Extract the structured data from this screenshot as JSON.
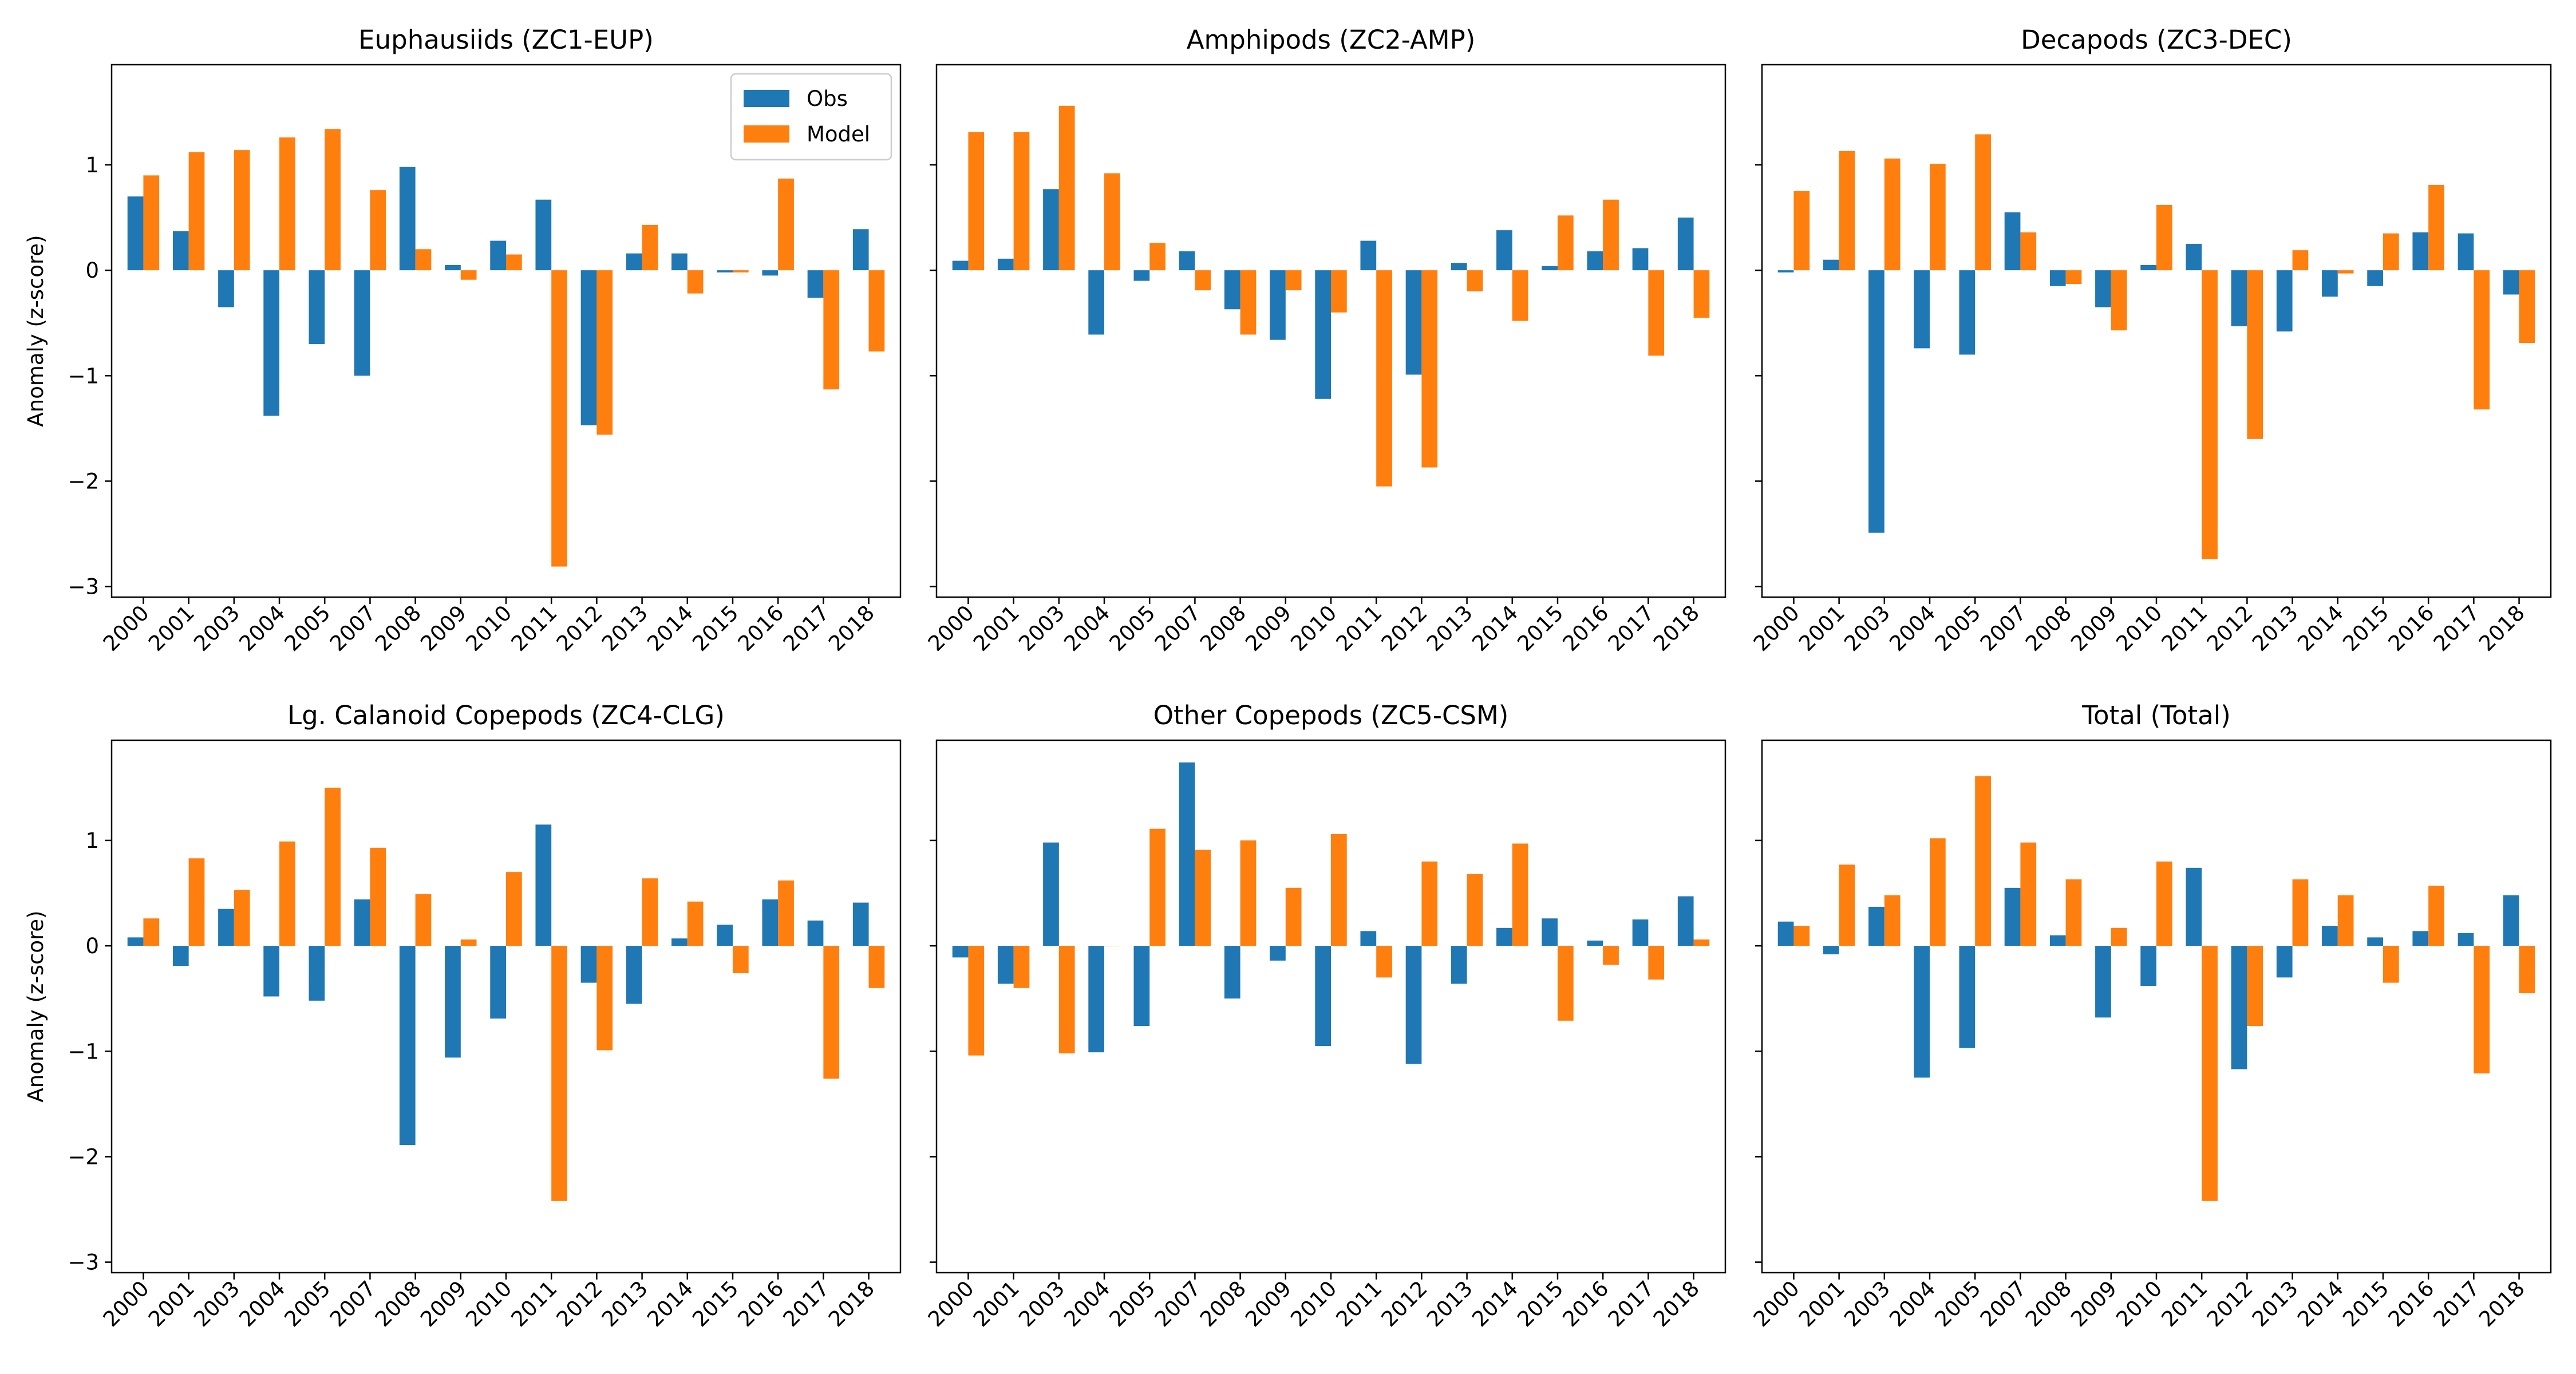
{
  "colors": {
    "obs": "#1f77b4",
    "model": "#ff7f0e"
  },
  "legend": {
    "position": "top-right",
    "entries": [
      "Obs",
      "Model"
    ]
  },
  "chart_data": [
    {
      "type": "bar",
      "title": "Euphausiids (ZC1-EUP)",
      "ylabel": "Anomaly (z-score)",
      "categories": [
        "2000",
        "2001",
        "2003",
        "2004",
        "2005",
        "2007",
        "2008",
        "2009",
        "2010",
        "2011",
        "2012",
        "2013",
        "2014",
        "2015",
        "2016",
        "2017",
        "2018"
      ],
      "ylim": [
        -3.1,
        1.95
      ],
      "yticks": [
        1,
        0,
        -1,
        -2,
        -3
      ],
      "grid": false,
      "series": [
        {
          "name": "Obs",
          "values": [
            0.7,
            0.37,
            -0.35,
            -1.38,
            -0.7,
            -1.0,
            0.98,
            0.05,
            0.28,
            0.67,
            -1.47,
            0.16,
            0.16,
            -0.02,
            -0.05,
            -0.26,
            0.39
          ]
        },
        {
          "name": "Model",
          "values": [
            0.9,
            1.12,
            1.14,
            1.26,
            1.34,
            0.76,
            0.2,
            -0.09,
            0.15,
            -2.81,
            -1.56,
            0.43,
            -0.22,
            -0.02,
            0.87,
            -1.13,
            -0.77
          ]
        }
      ]
    },
    {
      "type": "bar",
      "title": "Amphipods (ZC2-AMP)",
      "ylabel": "",
      "categories": [
        "2000",
        "2001",
        "2003",
        "2004",
        "2005",
        "2007",
        "2008",
        "2009",
        "2010",
        "2011",
        "2012",
        "2013",
        "2014",
        "2015",
        "2016",
        "2017",
        "2018"
      ],
      "ylim": [
        -3.1,
        1.95
      ],
      "yticks": [
        1,
        0,
        -1,
        -2,
        -3
      ],
      "grid": false,
      "series": [
        {
          "name": "Obs",
          "values": [
            0.09,
            0.11,
            0.77,
            -0.61,
            -0.1,
            0.18,
            -0.37,
            -0.66,
            -1.22,
            0.28,
            -0.99,
            0.07,
            0.38,
            0.04,
            0.18,
            0.21,
            0.5
          ]
        },
        {
          "name": "Model",
          "values": [
            1.31,
            1.31,
            1.56,
            0.92,
            0.26,
            -0.19,
            -0.61,
            -0.19,
            -0.4,
            -2.05,
            -1.87,
            -0.2,
            -0.48,
            0.52,
            0.67,
            -0.81,
            -0.45
          ]
        }
      ]
    },
    {
      "type": "bar",
      "title": "Decapods (ZC3-DEC)",
      "ylabel": "",
      "categories": [
        "2000",
        "2001",
        "2003",
        "2004",
        "2005",
        "2007",
        "2008",
        "2009",
        "2010",
        "2011",
        "2012",
        "2013",
        "2014",
        "2015",
        "2016",
        "2017",
        "2018"
      ],
      "ylim": [
        -3.1,
        1.95
      ],
      "yticks": [
        1,
        0,
        -1,
        -2,
        -3
      ],
      "grid": false,
      "series": [
        {
          "name": "Obs",
          "values": [
            -0.02,
            0.1,
            -2.49,
            -0.74,
            -0.8,
            0.55,
            -0.15,
            -0.35,
            0.05,
            0.25,
            -0.53,
            -0.58,
            -0.25,
            -0.15,
            0.36,
            0.35,
            -0.23
          ]
        },
        {
          "name": "Model",
          "values": [
            0.75,
            1.13,
            1.06,
            1.01,
            1.29,
            0.36,
            -0.13,
            -0.57,
            0.62,
            -2.74,
            -1.6,
            0.19,
            -0.03,
            0.35,
            0.81,
            -1.32,
            -0.69
          ]
        }
      ]
    },
    {
      "type": "bar",
      "title": "Lg. Calanoid Copepods (ZC4-CLG)",
      "ylabel": "Anomaly (z-score)",
      "categories": [
        "2000",
        "2001",
        "2003",
        "2004",
        "2005",
        "2007",
        "2008",
        "2009",
        "2010",
        "2011",
        "2012",
        "2013",
        "2014",
        "2015",
        "2016",
        "2017",
        "2018"
      ],
      "ylim": [
        -3.1,
        1.95
      ],
      "yticks": [
        1,
        0,
        -1,
        -2,
        -3
      ],
      "grid": false,
      "series": [
        {
          "name": "Obs",
          "values": [
            0.08,
            -0.19,
            0.35,
            -0.48,
            -0.52,
            0.44,
            -1.89,
            -1.06,
            -0.69,
            1.15,
            -0.35,
            -0.55,
            0.07,
            0.2,
            0.44,
            0.24,
            0.41
          ]
        },
        {
          "name": "Model",
          "values": [
            0.26,
            0.83,
            0.53,
            0.99,
            1.5,
            0.93,
            0.49,
            0.06,
            0.7,
            -2.42,
            -0.99,
            0.64,
            0.42,
            -0.26,
            0.62,
            -1.26,
            -0.4
          ]
        }
      ]
    },
    {
      "type": "bar",
      "title": "Other Copepods (ZC5-CSM)",
      "ylabel": "",
      "categories": [
        "2000",
        "2001",
        "2003",
        "2004",
        "2005",
        "2007",
        "2008",
        "2009",
        "2010",
        "2011",
        "2012",
        "2013",
        "2014",
        "2015",
        "2016",
        "2017",
        "2018"
      ],
      "ylim": [
        -3.1,
        1.95
      ],
      "yticks": [
        1,
        0,
        -1,
        -2,
        -3
      ],
      "grid": false,
      "series": [
        {
          "name": "Obs",
          "values": [
            -0.11,
            -0.36,
            0.98,
            -1.01,
            -0.76,
            1.74,
            -0.5,
            -0.14,
            -0.95,
            0.14,
            -1.12,
            -0.36,
            0.17,
            0.26,
            0.05,
            0.25,
            0.47
          ]
        },
        {
          "name": "Model",
          "values": [
            -1.04,
            -0.4,
            -1.02,
            0.0,
            1.11,
            0.91,
            1.0,
            0.55,
            1.06,
            -0.3,
            0.8,
            0.68,
            0.97,
            -0.71,
            -0.18,
            -0.32,
            0.06
          ]
        }
      ]
    },
    {
      "type": "bar",
      "title": "Total (Total)",
      "ylabel": "",
      "categories": [
        "2000",
        "2001",
        "2003",
        "2004",
        "2005",
        "2007",
        "2008",
        "2009",
        "2010",
        "2011",
        "2012",
        "2013",
        "2014",
        "2015",
        "2016",
        "2017",
        "2018"
      ],
      "ylim": [
        -3.1,
        1.95
      ],
      "yticks": [
        1,
        0,
        -1,
        -2,
        -3
      ],
      "grid": false,
      "series": [
        {
          "name": "Obs",
          "values": [
            0.23,
            -0.08,
            0.37,
            -1.25,
            -0.97,
            0.55,
            0.1,
            -0.68,
            -0.38,
            0.74,
            -1.17,
            -0.3,
            0.19,
            0.08,
            0.14,
            0.12,
            0.48
          ]
        },
        {
          "name": "Model",
          "values": [
            0.19,
            0.77,
            0.48,
            1.02,
            1.61,
            0.98,
            0.63,
            0.17,
            0.8,
            -2.42,
            -0.76,
            0.63,
            0.48,
            -0.35,
            0.57,
            -1.21,
            -0.45
          ]
        }
      ]
    }
  ]
}
